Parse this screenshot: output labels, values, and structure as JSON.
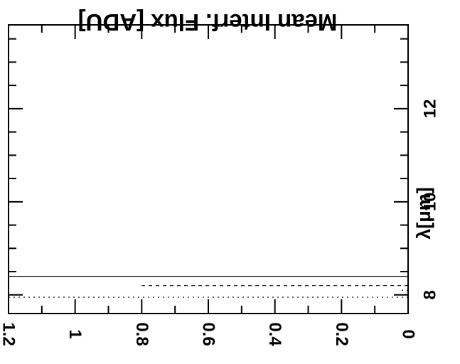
{
  "chart_data": {
    "type": "line",
    "orientation": "rotated-180",
    "title": "Mean Interf. Flux [ADU]",
    "xlabel": "λ[μm]",
    "ylabel": "",
    "xlim": [
      7.6,
      13.8
    ],
    "ylim": [
      0,
      1.2
    ],
    "x_ticks_major": [
      8,
      10,
      12
    ],
    "x_tick_labels": [
      "8",
      "10",
      "12"
    ],
    "y_ticks_major": [
      0,
      0.2,
      0.4,
      0.6,
      0.8,
      1,
      1.2
    ],
    "y_tick_labels": [
      "0",
      "0.2",
      "0.4",
      "0.6",
      "0.8",
      "1",
      "1.2"
    ],
    "series": [
      {
        "style": "solid",
        "x": [
          8.4,
          8.4
        ],
        "y": [
          0,
          1.2
        ]
      },
      {
        "style": "dashed",
        "x": [
          8.2,
          8.2
        ],
        "y": [
          0,
          0.8
        ]
      },
      {
        "style": "dotted",
        "x": [
          7.95,
          7.95
        ],
        "y": [
          0,
          1.2
        ]
      },
      {
        "style": "dotted",
        "x": [
          8.1,
          8.1
        ],
        "y": [
          0,
          0.03
        ]
      },
      {
        "style": "dashed",
        "x": [
          8.0,
          8.0
        ],
        "y": [
          0,
          0.02
        ]
      }
    ],
    "grid": false
  }
}
